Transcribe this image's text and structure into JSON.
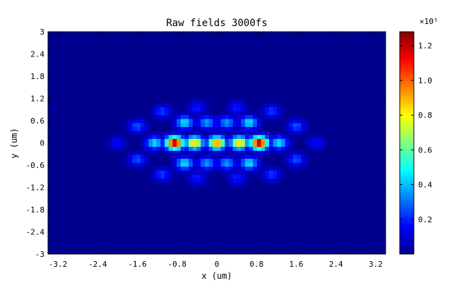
{
  "chart_data": {
    "type": "heatmap",
    "title": "Raw fields 3000fs",
    "xlabel": "x (um)",
    "ylabel": "y (um)",
    "xlim": [
      -3.4,
      3.4
    ],
    "ylim": [
      -3,
      3
    ],
    "xticks": [
      "-3.2",
      "-2.4",
      "-1.6",
      "-0.8",
      "0",
      "0.8",
      "1.6",
      "2.4",
      "3.2"
    ],
    "xtick_values": [
      -3.2,
      -2.4,
      -1.6,
      -0.8,
      0,
      0.8,
      1.6,
      2.4,
      3.2
    ],
    "yticks": [
      "3",
      "2.4",
      "1.8",
      "1.2",
      "0.6",
      "0",
      "-0.6",
      "-1.2",
      "-1.8",
      "-2.4",
      "-3"
    ],
    "ytick_values": [
      3,
      2.4,
      1.8,
      1.2,
      0.6,
      0,
      -0.6,
      -1.2,
      -1.8,
      -2.4,
      -3
    ],
    "colorbar": {
      "min": 0,
      "max": 128000,
      "exponent_label": "×10⁵",
      "ticks": [
        "1.2",
        "1.0",
        "0.8",
        "0.6",
        "0.4",
        "0.2"
      ],
      "tick_values": [
        1.2,
        1.0,
        0.8,
        0.6,
        0.4,
        0.2
      ],
      "colormap": "jet"
    },
    "grid": false,
    "features": [
      {
        "x": -0.85,
        "y": 0.0,
        "value": 128000
      },
      {
        "x": 0.0,
        "y": 0.0,
        "value": 100000
      },
      {
        "x": 0.85,
        "y": 0.0,
        "value": 128000
      },
      {
        "x": -0.45,
        "y": 0.0,
        "value": 90000
      },
      {
        "x": 0.45,
        "y": 0.0,
        "value": 90000
      },
      {
        "x": -1.25,
        "y": 0.0,
        "value": 45000
      },
      {
        "x": 1.25,
        "y": 0.0,
        "value": 45000
      },
      {
        "x": -0.65,
        "y": 0.55,
        "value": 45000
      },
      {
        "x": 0.65,
        "y": 0.55,
        "value": 45000
      },
      {
        "x": -0.65,
        "y": -0.55,
        "value": 45000
      },
      {
        "x": 0.65,
        "y": -0.55,
        "value": 45000
      },
      {
        "x": -0.2,
        "y": 0.55,
        "value": 35000
      },
      {
        "x": 0.2,
        "y": 0.55,
        "value": 35000
      },
      {
        "x": -0.2,
        "y": -0.55,
        "value": 35000
      },
      {
        "x": 0.2,
        "y": -0.55,
        "value": 35000
      },
      {
        "x": -1.6,
        "y": 0.45,
        "value": 25000
      },
      {
        "x": 1.6,
        "y": 0.45,
        "value": 25000
      },
      {
        "x": -1.6,
        "y": -0.45,
        "value": 25000
      },
      {
        "x": 1.6,
        "y": -0.45,
        "value": 25000
      },
      {
        "x": -1.1,
        "y": 0.85,
        "value": 22000
      },
      {
        "x": 1.1,
        "y": 0.85,
        "value": 22000
      },
      {
        "x": -1.1,
        "y": -0.85,
        "value": 22000
      },
      {
        "x": 1.1,
        "y": -0.85,
        "value": 22000
      },
      {
        "x": -0.4,
        "y": 0.95,
        "value": 18000
      },
      {
        "x": 0.4,
        "y": 0.95,
        "value": 18000
      },
      {
        "x": -0.4,
        "y": -0.95,
        "value": 18000
      },
      {
        "x": 0.4,
        "y": -0.95,
        "value": 18000
      },
      {
        "x": -2.0,
        "y": 0.0,
        "value": 15000
      },
      {
        "x": 2.0,
        "y": 0.0,
        "value": 15000
      }
    ]
  }
}
